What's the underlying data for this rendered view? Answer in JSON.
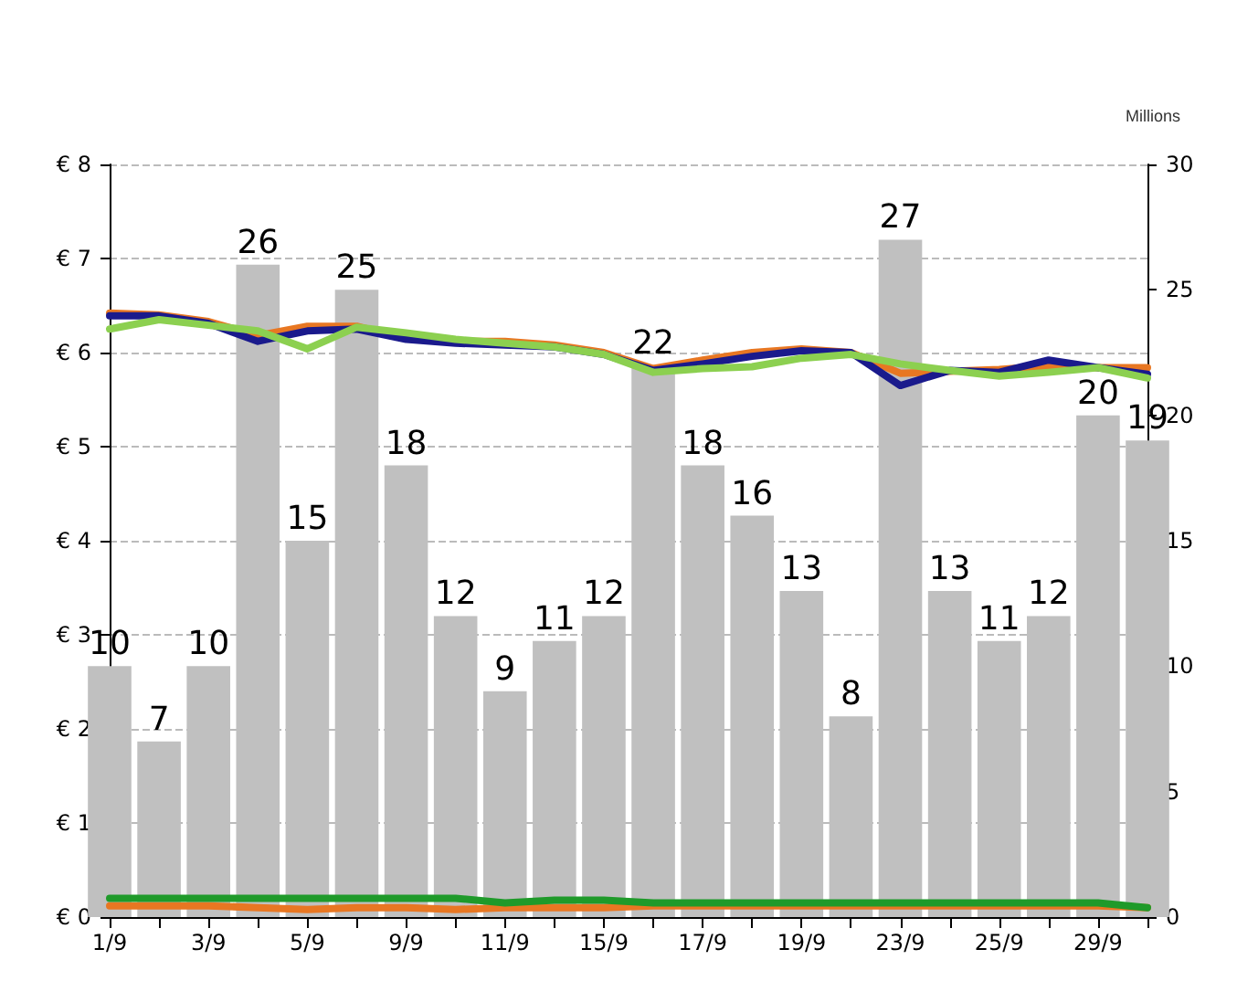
{
  "chart_data": {
    "type": "line",
    "y2label": "Millions",
    "categories": [
      "1/9",
      null,
      "3/9",
      null,
      "5/9",
      null,
      "9/9",
      null,
      "11/9",
      null,
      "15/9",
      null,
      "17/9",
      null,
      "19/9",
      null,
      "23/9",
      null,
      "25/9",
      null,
      "29/9",
      null
    ],
    "series": [
      {
        "type": "bar",
        "axis": "y2",
        "color": "#c0c0c0",
        "data_labels": true,
        "values": [
          10,
          7,
          10,
          26,
          15,
          25,
          18,
          12,
          9,
          11,
          12,
          22,
          18,
          16,
          13,
          8,
          27,
          13,
          11,
          12,
          20,
          19
        ]
      },
      {
        "color": "#e87722",
        "values": [
          6.42,
          6.4,
          6.33,
          6.18,
          6.28,
          6.28,
          6.15,
          6.12,
          6.12,
          6.08,
          6.0,
          5.83,
          5.92,
          6.0,
          6.04,
          6.0,
          5.78,
          5.8,
          5.82,
          5.86,
          5.84,
          5.84
        ]
      },
      {
        "color": "#1a1a8c",
        "values": [
          6.39,
          6.39,
          6.31,
          6.12,
          6.23,
          6.25,
          6.14,
          6.1,
          6.08,
          6.06,
          5.98,
          5.81,
          5.88,
          5.96,
          6.02,
          6.0,
          5.65,
          5.81,
          5.79,
          5.92,
          5.84,
          5.77
        ]
      },
      {
        "color": "#8cd050",
        "values": [
          6.25,
          6.35,
          6.29,
          6.23,
          6.04,
          6.27,
          6.21,
          6.14,
          6.1,
          6.06,
          5.98,
          5.79,
          5.83,
          5.85,
          5.94,
          5.98,
          5.88,
          5.81,
          5.75,
          5.79,
          5.84,
          5.73
        ]
      },
      {
        "color": "#e87722",
        "values": [
          0.12,
          0.12,
          0.12,
          0.1,
          0.08,
          0.1,
          0.1,
          0.08,
          0.1,
          0.1,
          0.1,
          0.12,
          0.12,
          0.12,
          0.12,
          0.12,
          0.12,
          0.12,
          0.12,
          0.12,
          0.12,
          0.1
        ]
      },
      {
        "color": "#1f9a2a",
        "values": [
          0.2,
          0.2,
          0.2,
          0.2,
          0.2,
          0.2,
          0.2,
          0.2,
          0.15,
          0.18,
          0.18,
          0.15,
          0.15,
          0.15,
          0.15,
          0.15,
          0.15,
          0.15,
          0.15,
          0.15,
          0.15,
          0.1
        ]
      }
    ],
    "ylim": [
      0,
      8
    ],
    "yticks": [
      {
        "value": 0,
        "label": "€ 0"
      },
      {
        "value": 1,
        "label": "€ 1"
      },
      {
        "value": 2,
        "label": "€ 2"
      },
      {
        "value": 3,
        "label": "€ 3"
      },
      {
        "value": 4,
        "label": "€ 4"
      },
      {
        "value": 5,
        "label": "€ 5"
      },
      {
        "value": 6,
        "label": "€ 6"
      },
      {
        "value": 7,
        "label": "€ 7"
      },
      {
        "value": 8,
        "label": "€ 8"
      }
    ],
    "y2lim": [
      0,
      30
    ],
    "y2ticks": [
      0,
      5,
      10,
      15,
      20,
      25,
      30
    ],
    "grid": "y",
    "marker": "none",
    "line_style": "solid"
  }
}
